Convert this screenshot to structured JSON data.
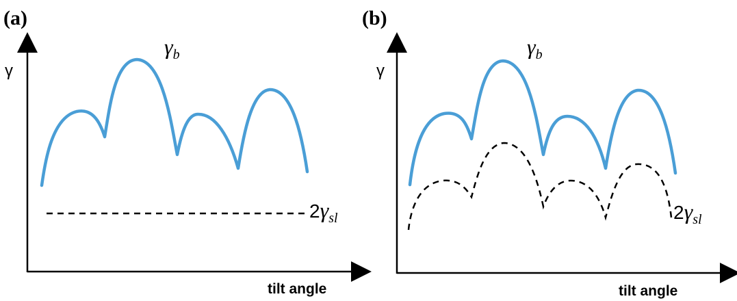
{
  "panels": [
    {
      "label": "(a)",
      "y_axis_label": "γ",
      "x_axis_label": "tilt angle",
      "solid_curve": {
        "symbol": "γ",
        "subscript": "b",
        "color": "#4a9ed6",
        "style": "solid"
      },
      "dashed_curve": {
        "coefficient": "2",
        "symbol": "γ",
        "subscript": "sl",
        "color": "#000000",
        "style": "dashed",
        "shape": "flat"
      }
    },
    {
      "label": "(b)",
      "y_axis_label": "γ",
      "x_axis_label": "tilt angle",
      "solid_curve": {
        "symbol": "γ",
        "subscript": "b",
        "color": "#4a9ed6",
        "style": "solid"
      },
      "dashed_curve": {
        "coefficient": "2",
        "symbol": "γ",
        "subscript": "sl",
        "color": "#000000",
        "style": "dashed",
        "shape": "cusped"
      }
    }
  ]
}
